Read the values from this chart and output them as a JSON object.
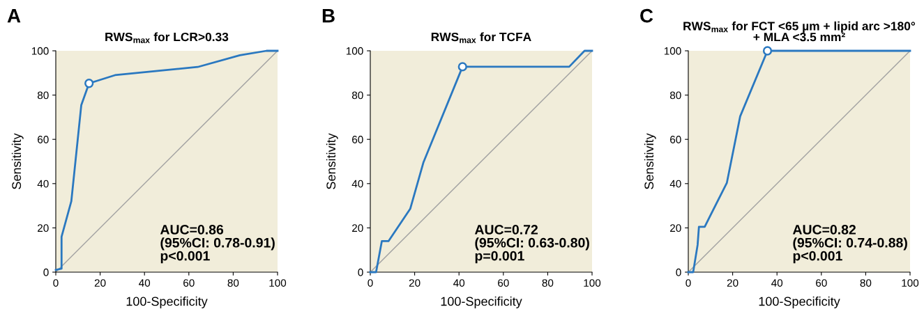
{
  "chart_data": [
    {
      "type": "line",
      "title": "RWS$_{max}$ for LCR>0.33",
      "xlabel": "100-Specificity",
      "ylabel": "Sensitivity",
      "annotations": [
        "A",
        "AUC=0.86\n(95%CI: 0.78-0.91)\np<0.001"
      ],
      "series": [
        {
          "type": "line",
          "color": "#2a78c0",
          "x": [
            0,
            2.6,
            2.6,
            7,
            11.5,
            15,
            26.7,
            64,
            83,
            95,
            100
          ],
          "values": [
            1,
            1.6,
            16,
            32,
            75.5,
            85.3,
            89,
            92.7,
            98,
            100,
            100
          ]
        },
        {
          "type": "scatter",
          "color": "#2a78c0",
          "marker": "circle",
          "x": [
            15
          ],
          "values": [
            85.3
          ]
        },
        {
          "type": "line",
          "color": "#a0a0a0",
          "x": [
            0,
            100
          ],
          "values": [
            0,
            100
          ]
        }
      ],
      "xlim": [
        0,
        100
      ],
      "ylim": [
        0,
        100
      ],
      "xticks": [
        0,
        20,
        40,
        60,
        80,
        100
      ],
      "yticks": [
        0,
        20,
        40,
        60,
        80,
        100
      ],
      "grid": false,
      "legend": false
    },
    {
      "type": "line",
      "title": "RWS$_{max}$ for TCFA",
      "xlabel": "100-Specificity",
      "ylabel": "Sensitivity",
      "annotations": [
        "B",
        "AUC=0.72\n(95%CI: 0.63-0.80)\np=0.001"
      ],
      "series": [
        {
          "type": "line",
          "color": "#2a78c0",
          "x": [
            0,
            2.6,
            5.2,
            8.2,
            18,
            24,
            41.6,
            89.7,
            96.6,
            100
          ],
          "values": [
            0,
            0,
            14,
            14,
            28.6,
            49.7,
            92.8,
            92.8,
            100,
            100
          ]
        },
        {
          "type": "scatter",
          "color": "#2a78c0",
          "marker": "circle",
          "x": [
            41.6
          ],
          "values": [
            92.8
          ]
        },
        {
          "type": "line",
          "color": "#a0a0a0",
          "x": [
            0,
            100
          ],
          "values": [
            0,
            100
          ]
        }
      ],
      "xlim": [
        0,
        100
      ],
      "ylim": [
        0,
        100
      ],
      "xticks": [
        0,
        20,
        40,
        60,
        80,
        100
      ],
      "yticks": [
        0,
        20,
        40,
        60,
        80,
        100
      ],
      "grid": false,
      "legend": false
    },
    {
      "type": "line",
      "title": "RWS$_{max}$ for FCT <65 µm + lipid arc >180°\n+ MLA <3.5 mm²",
      "xlabel": "100-Specificity",
      "ylabel": "Sensitivity",
      "annotations": [
        "C",
        "AUC=0.82\n(95%CI: 0.74-0.88)\np<0.001"
      ],
      "series": [
        {
          "type": "line",
          "color": "#2a78c0",
          "x": [
            0,
            2.2,
            4.2,
            4.8,
            7.4,
            17.4,
            23.4,
            35.7,
            100
          ],
          "values": [
            0,
            0,
            12.3,
            20.5,
            20.5,
            40.4,
            70.4,
            100,
            100
          ]
        },
        {
          "type": "scatter",
          "color": "#2a78c0",
          "marker": "circle",
          "x": [
            35.7
          ],
          "values": [
            100
          ]
        },
        {
          "type": "line",
          "color": "#a0a0a0",
          "x": [
            0,
            100
          ],
          "values": [
            0,
            100
          ]
        }
      ],
      "xlim": [
        0,
        100
      ],
      "ylim": [
        0,
        100
      ],
      "xticks": [
        0,
        20,
        40,
        60,
        80,
        100
      ],
      "yticks": [
        0,
        20,
        40,
        60,
        80,
        100
      ],
      "grid": false,
      "legend": false
    }
  ]
}
